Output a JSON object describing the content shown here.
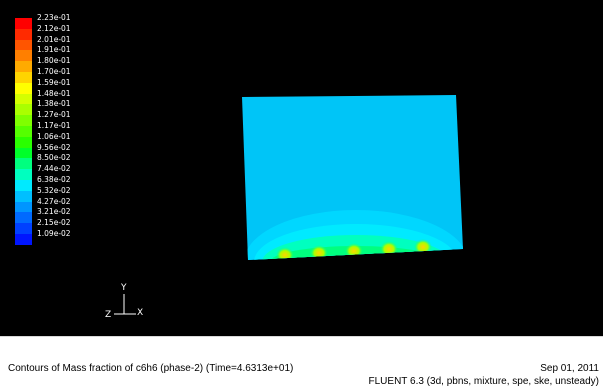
{
  "colorbar": {
    "labels": [
      "2.23e-01",
      "2.12e-01",
      "2.01e-01",
      "1.91e-01",
      "1.80e-01",
      "1.70e-01",
      "1.59e-01",
      "1.48e-01",
      "1.38e-01",
      "1.27e-01",
      "1.17e-01",
      "1.06e-01",
      "9.56e-02",
      "8.50e-02",
      "7.44e-02",
      "6.38e-02",
      "5.32e-02",
      "4.27e-02",
      "3.21e-02",
      "2.15e-02",
      "1.09e-02"
    ],
    "colors": [
      "#ff0000",
      "#ff2a00",
      "#ff5500",
      "#ff7f00",
      "#ffaa00",
      "#ffd400",
      "#ffff00",
      "#d4ff00",
      "#aaff00",
      "#7fff00",
      "#55ff00",
      "#2aff00",
      "#00ff2a",
      "#00ff7f",
      "#00ffbf",
      "#00eaff",
      "#00bfff",
      "#0095ff",
      "#006aff",
      "#0040ff",
      "#0015ff"
    ]
  },
  "axes": {
    "x": "X",
    "y": "Y",
    "z": "Z"
  },
  "domain": {
    "background_color": "#00c5f7",
    "band_color": "#00e5ff"
  },
  "footer": {
    "title": "Contours of Mass fraction of c6h6  (phase-2)  (Time=4.6313e+01)",
    "date": "Sep 01, 2011",
    "version": "FLUENT 6.3 (3d, pbns, mixture, spe, ske, unsteady)"
  }
}
